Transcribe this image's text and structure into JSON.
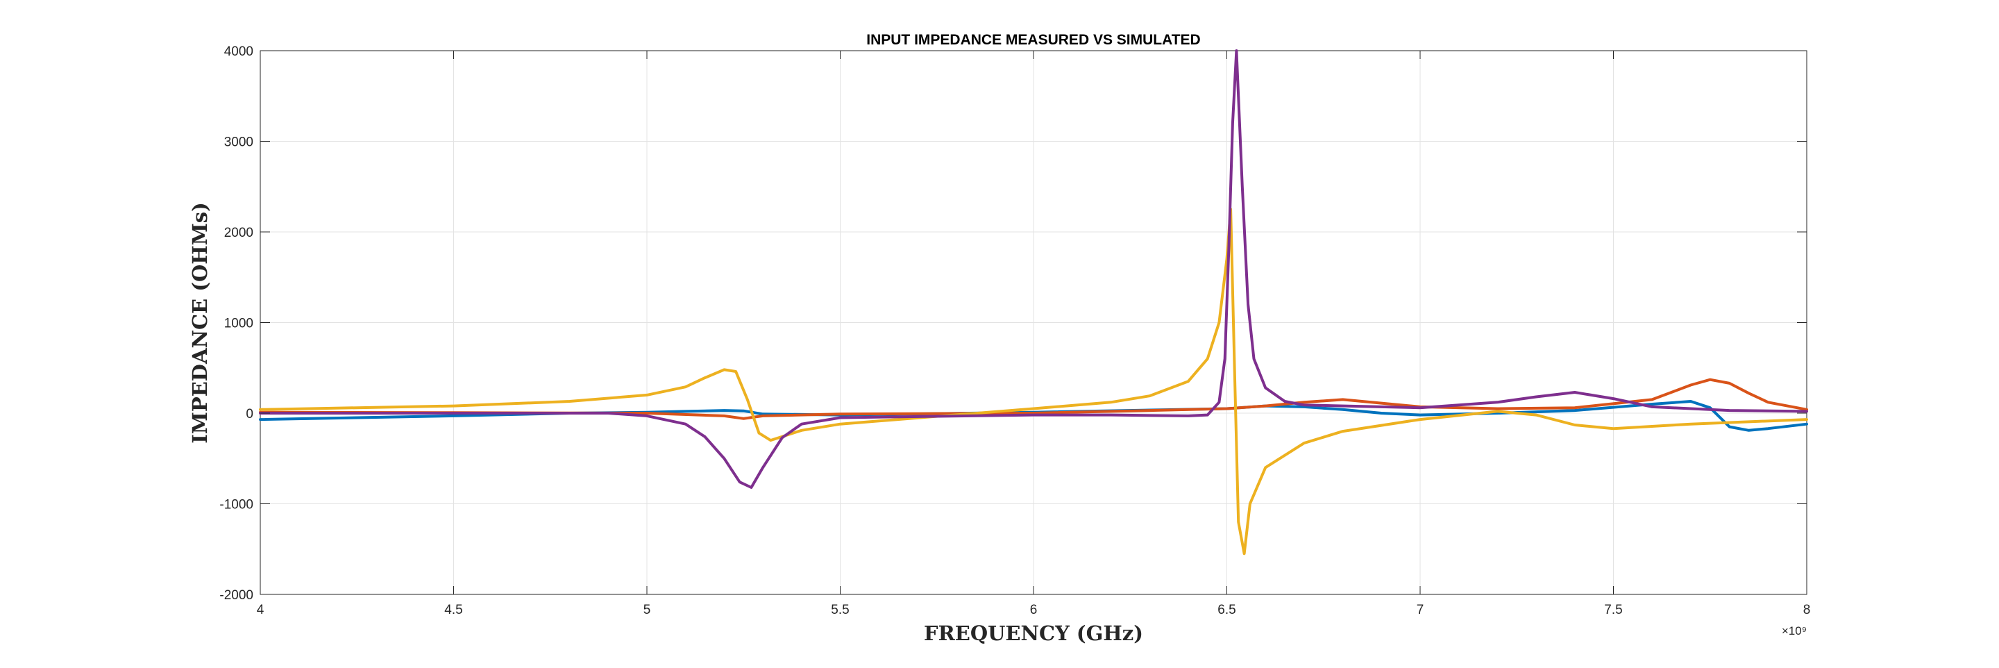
{
  "chart_data": {
    "type": "line",
    "title": "INPUT IMPEDANCE MEASURED VS SIMULATED",
    "xlabel": "FREQUENCY (GHz)",
    "ylabel": "IMPEDANCE (OHMs)",
    "x_exponent_label": "×10⁹",
    "xlim": [
      4000000000,
      8000000000
    ],
    "ylim": [
      -2000,
      4000
    ],
    "xticks": [
      4000000000,
      4500000000,
      5000000000,
      5500000000,
      6000000000,
      6500000000,
      7000000000,
      7500000000,
      8000000000
    ],
    "xtick_labels": [
      "4",
      "4.5",
      "5",
      "5.5",
      "6",
      "6.5",
      "7",
      "7.5",
      "8"
    ],
    "yticks": [
      -2000,
      -1000,
      0,
      1000,
      2000,
      3000,
      4000
    ],
    "ytick_labels": [
      "-2000",
      "-1000",
      "0",
      "1000",
      "2000",
      "3000",
      "4000"
    ],
    "grid": true,
    "series": [
      {
        "color": "#0072BD",
        "x": [
          4000000000,
          4500000000,
          4800000000,
          5000000000,
          5100000000,
          5200000000,
          5250000000,
          5300000000,
          5500000000,
          6000000000,
          6500000000,
          6600000000,
          6700000000,
          6800000000,
          6900000000,
          7000000000,
          7200000000,
          7400000000,
          7600000000,
          7700000000,
          7750000000,
          7800000000,
          7850000000,
          7900000000,
          8000000000
        ],
        "values": [
          -70,
          -30,
          0,
          10,
          20,
          30,
          25,
          -10,
          -20,
          10,
          50,
          80,
          70,
          40,
          0,
          -20,
          0,
          30,
          100,
          130,
          60,
          -150,
          -190,
          -170,
          -120
        ]
      },
      {
        "color": "#D95319",
        "x": [
          4000000000,
          4500000000,
          5000000000,
          5200000000,
          5250000000,
          5300000000,
          5500000000,
          6000000000,
          6500000000,
          6600000000,
          6700000000,
          6800000000,
          6900000000,
          7000000000,
          7200000000,
          7400000000,
          7600000000,
          7700000000,
          7750000000,
          7800000000,
          7850000000,
          7900000000,
          8000000000
        ],
        "values": [
          10,
          5,
          0,
          -30,
          -60,
          -30,
          -10,
          0,
          50,
          80,
          120,
          150,
          110,
          70,
          50,
          60,
          150,
          310,
          370,
          330,
          220,
          120,
          40
        ]
      },
      {
        "color": "#EDB120",
        "x": [
          4000000000,
          4500000000,
          4800000000,
          5000000000,
          5100000000,
          5150000000,
          5200000000,
          5230000000,
          5260000000,
          5290000000,
          5320000000,
          5400000000,
          5500000000,
          6000000000,
          6200000000,
          6300000000,
          6400000000,
          6450000000,
          6480000000,
          6500000000,
          6510000000,
          6520000000,
          6530000000,
          6545000000,
          6560000000,
          6600000000,
          6700000000,
          6800000000,
          7000000000,
          7200000000,
          7300000000,
          7400000000,
          7500000000,
          7700000000,
          8000000000
        ],
        "values": [
          40,
          80,
          130,
          200,
          290,
          390,
          480,
          460,
          150,
          -220,
          -300,
          -190,
          -120,
          50,
          120,
          190,
          350,
          600,
          1000,
          1700,
          2250,
          500,
          -1200,
          -1550,
          -1000,
          -600,
          -330,
          -200,
          -70,
          20,
          -20,
          -130,
          -170,
          -120,
          -70
        ]
      },
      {
        "color": "#7E2F8E",
        "x": [
          4000000000,
          4500000000,
          4900000000,
          5000000000,
          5100000000,
          5150000000,
          5200000000,
          5240000000,
          5270000000,
          5300000000,
          5350000000,
          5400000000,
          5500000000,
          6000000000,
          6200000000,
          6400000000,
          6450000000,
          6480000000,
          6495000000,
          6505000000,
          6515000000,
          6525000000,
          6540000000,
          6555000000,
          6570000000,
          6600000000,
          6650000000,
          6700000000,
          7000000000,
          7200000000,
          7300000000,
          7400000000,
          7500000000,
          7600000000,
          7800000000,
          8000000000
        ],
        "values": [
          0,
          0,
          0,
          -30,
          -120,
          -260,
          -500,
          -760,
          -820,
          -600,
          -270,
          -120,
          -50,
          -20,
          -20,
          -30,
          -20,
          120,
          600,
          1800,
          3200,
          4000,
          2500,
          1200,
          600,
          280,
          130,
          90,
          60,
          120,
          180,
          230,
          160,
          70,
          30,
          20
        ]
      }
    ]
  }
}
